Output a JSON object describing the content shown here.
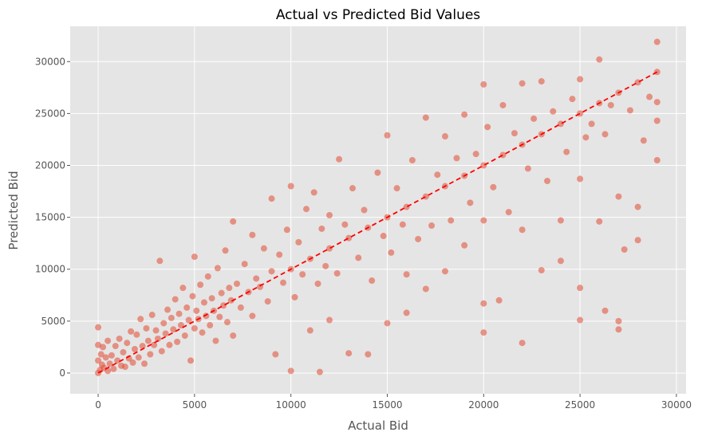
{
  "chart_data": {
    "type": "scatter",
    "title": "Actual vs Predicted Bid Values",
    "xlabel": "Actual Bid",
    "ylabel": "Predicted Bid",
    "xlim": [
      -1450,
      30500
    ],
    "ylim": [
      -2000,
      33400
    ],
    "x_ticks": [
      0,
      5000,
      10000,
      15000,
      20000,
      25000,
      30000
    ],
    "y_ticks": [
      0,
      5000,
      10000,
      15000,
      20000,
      25000,
      30000
    ],
    "grid": true,
    "reference_line": {
      "x": [
        0,
        29000
      ],
      "y": [
        0,
        29000
      ],
      "color": "#ff0000",
      "style": "dashed"
    },
    "colors": {
      "points": "#e24a33",
      "background": "#e5e5e5",
      "grid": "#ffffff"
    },
    "series": [
      {
        "values": [
          [
            0,
            0
          ],
          [
            0,
            1200
          ],
          [
            0,
            2700
          ],
          [
            0,
            4400
          ],
          [
            100,
            300
          ],
          [
            150,
            1800
          ],
          [
            200,
            800
          ],
          [
            250,
            2500
          ],
          [
            300,
            500
          ],
          [
            400,
            1500
          ],
          [
            500,
            200
          ],
          [
            500,
            3100
          ],
          [
            600,
            900
          ],
          [
            700,
            1700
          ],
          [
            800,
            400
          ],
          [
            900,
            2600
          ],
          [
            1000,
            1200
          ],
          [
            1100,
            3300
          ],
          [
            1200,
            700
          ],
          [
            1300,
            2000
          ],
          [
            1400,
            600
          ],
          [
            1500,
            2900
          ],
          [
            1600,
            1400
          ],
          [
            1700,
            4000
          ],
          [
            1800,
            1000
          ],
          [
            1900,
            2300
          ],
          [
            2000,
            3700
          ],
          [
            2100,
            1500
          ],
          [
            2200,
            5200
          ],
          [
            2300,
            2600
          ],
          [
            2400,
            900
          ],
          [
            2500,
            4300
          ],
          [
            2600,
            3100
          ],
          [
            2700,
            1800
          ],
          [
            2800,
            5600
          ],
          [
            2900,
            2700
          ],
          [
            3000,
            4100
          ],
          [
            3100,
            3300
          ],
          [
            3200,
            10800
          ],
          [
            3300,
            2100
          ],
          [
            3400,
            4800
          ],
          [
            3500,
            3800
          ],
          [
            3600,
            6100
          ],
          [
            3700,
            2700
          ],
          [
            3800,
            5300
          ],
          [
            3900,
            4200
          ],
          [
            4000,
            7100
          ],
          [
            4100,
            3000
          ],
          [
            4200,
            5700
          ],
          [
            4300,
            4600
          ],
          [
            4400,
            8200
          ],
          [
            4500,
            3600
          ],
          [
            4600,
            6300
          ],
          [
            4700,
            5100
          ],
          [
            4800,
            1200
          ],
          [
            4900,
            7400
          ],
          [
            5000,
            4300
          ],
          [
            5000,
            11200
          ],
          [
            5100,
            6000
          ],
          [
            5200,
            5200
          ],
          [
            5300,
            8500
          ],
          [
            5400,
            3900
          ],
          [
            5500,
            6800
          ],
          [
            5600,
            5500
          ],
          [
            5700,
            9300
          ],
          [
            5800,
            4600
          ],
          [
            5900,
            7200
          ],
          [
            6000,
            6000
          ],
          [
            6100,
            3100
          ],
          [
            6200,
            10100
          ],
          [
            6300,
            5400
          ],
          [
            6400,
            7700
          ],
          [
            6500,
            6500
          ],
          [
            6600,
            11800
          ],
          [
            6700,
            4900
          ],
          [
            6800,
            8200
          ],
          [
            6900,
            7000
          ],
          [
            7000,
            14600
          ],
          [
            7000,
            3600
          ],
          [
            7200,
            8600
          ],
          [
            7400,
            6300
          ],
          [
            7600,
            10500
          ],
          [
            7800,
            7800
          ],
          [
            8000,
            5500
          ],
          [
            8000,
            13300
          ],
          [
            8200,
            9100
          ],
          [
            8400,
            8300
          ],
          [
            8600,
            12000
          ],
          [
            8800,
            6900
          ],
          [
            9000,
            9800
          ],
          [
            9000,
            16800
          ],
          [
            9200,
            1800
          ],
          [
            9400,
            11400
          ],
          [
            9600,
            8700
          ],
          [
            9800,
            13800
          ],
          [
            10000,
            10000
          ],
          [
            10000,
            200
          ],
          [
            10000,
            18000
          ],
          [
            10200,
            7300
          ],
          [
            10400,
            12600
          ],
          [
            10600,
            9500
          ],
          [
            10800,
            15800
          ],
          [
            11000,
            11000
          ],
          [
            11000,
            4100
          ],
          [
            11200,
            17400
          ],
          [
            11400,
            8600
          ],
          [
            11500,
            100
          ],
          [
            11600,
            13900
          ],
          [
            11800,
            10300
          ],
          [
            12000,
            12000
          ],
          [
            12000,
            15200
          ],
          [
            12000,
            5100
          ],
          [
            12400,
            9600
          ],
          [
            12500,
            20600
          ],
          [
            12800,
            14300
          ],
          [
            13000,
            13000
          ],
          [
            13000,
            1900
          ],
          [
            13200,
            17800
          ],
          [
            13500,
            11100
          ],
          [
            13800,
            15700
          ],
          [
            14000,
            14000
          ],
          [
            14000,
            1800
          ],
          [
            14200,
            8900
          ],
          [
            14500,
            19300
          ],
          [
            14800,
            13200
          ],
          [
            15000,
            15000
          ],
          [
            15000,
            4800
          ],
          [
            15000,
            22900
          ],
          [
            15200,
            11600
          ],
          [
            15500,
            17800
          ],
          [
            15800,
            14300
          ],
          [
            16000,
            16000
          ],
          [
            16000,
            9500
          ],
          [
            16000,
            5800
          ],
          [
            16300,
            20500
          ],
          [
            16600,
            12900
          ],
          [
            17000,
            17000
          ],
          [
            17000,
            24600
          ],
          [
            17000,
            8100
          ],
          [
            17300,
            14200
          ],
          [
            17600,
            19100
          ],
          [
            18000,
            18000
          ],
          [
            18000,
            9800
          ],
          [
            18000,
            22800
          ],
          [
            18300,
            14700
          ],
          [
            18600,
            20700
          ],
          [
            19000,
            19000
          ],
          [
            19000,
            12300
          ],
          [
            19000,
            24900
          ],
          [
            19300,
            16400
          ],
          [
            19600,
            21100
          ],
          [
            20000,
            20000
          ],
          [
            20000,
            27800
          ],
          [
            20000,
            3900
          ],
          [
            20000,
            6700
          ],
          [
            20000,
            14700
          ],
          [
            20200,
            23700
          ],
          [
            20500,
            17900
          ],
          [
            20800,
            7000
          ],
          [
            21000,
            21000
          ],
          [
            21000,
            25800
          ],
          [
            21300,
            15500
          ],
          [
            21600,
            23100
          ],
          [
            22000,
            22000
          ],
          [
            22000,
            2900
          ],
          [
            22000,
            27900
          ],
          [
            22000,
            13800
          ],
          [
            22300,
            19700
          ],
          [
            22600,
            24500
          ],
          [
            23000,
            23000
          ],
          [
            23000,
            9900
          ],
          [
            23000,
            28100
          ],
          [
            23300,
            18500
          ],
          [
            23600,
            25200
          ],
          [
            24000,
            24000
          ],
          [
            24000,
            10800
          ],
          [
            24000,
            14700
          ],
          [
            24300,
            21300
          ],
          [
            24600,
            26400
          ],
          [
            25000,
            25000
          ],
          [
            25000,
            5100
          ],
          [
            25000,
            8200
          ],
          [
            25000,
            28300
          ],
          [
            25000,
            18700
          ],
          [
            25300,
            22700
          ],
          [
            25600,
            24000
          ],
          [
            26000,
            26000
          ],
          [
            26000,
            30200
          ],
          [
            26000,
            14600
          ],
          [
            26300,
            6000
          ],
          [
            26300,
            23000
          ],
          [
            26600,
            25800
          ],
          [
            27000,
            27000
          ],
          [
            27000,
            4200
          ],
          [
            27000,
            5000
          ],
          [
            27000,
            17000
          ],
          [
            27300,
            11900
          ],
          [
            27600,
            25300
          ],
          [
            28000,
            28000
          ],
          [
            28000,
            12800
          ],
          [
            28000,
            16000
          ],
          [
            28300,
            22400
          ],
          [
            28600,
            26600
          ],
          [
            29000,
            29000
          ],
          [
            29000,
            31900
          ],
          [
            29000,
            20500
          ],
          [
            29000,
            24300
          ],
          [
            29000,
            26100
          ]
        ]
      }
    ]
  }
}
